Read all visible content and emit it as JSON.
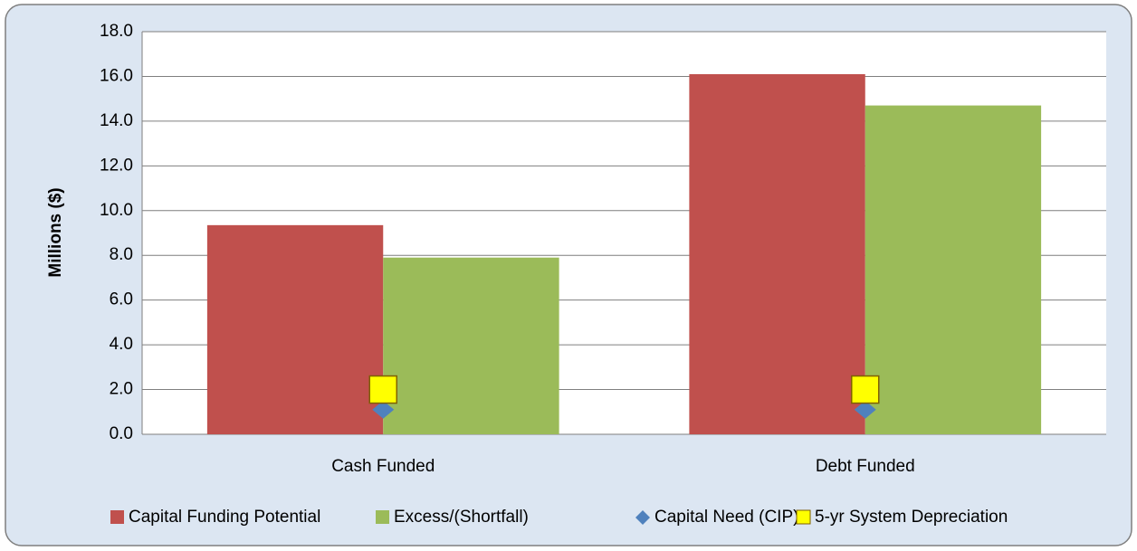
{
  "chart_data": {
    "type": "bar",
    "y_label": "Millions ($)",
    "categories": [
      "Cash Funded",
      "Debt Funded"
    ],
    "series": [
      {
        "name": "Capital Funding Potential",
        "color": "#c0504d",
        "values": [
          9.35,
          16.1
        ]
      },
      {
        "name": "Excess/(Shortfall)",
        "color": "#9bbb59",
        "values": [
          7.9,
          14.7
        ]
      },
      {
        "name": "Capital Need (CIP)",
        "color": "#4f81bd",
        "marker": "diamond",
        "values": [
          1.1,
          1.1
        ]
      },
      {
        "name": "5-yr System Depreciation",
        "color": "#ffff00",
        "marker": "square",
        "values": [
          2.0,
          2.0
        ]
      }
    ],
    "ylim": [
      0,
      18
    ],
    "yticks": [
      {
        "value": 0,
        "label": "0.0"
      },
      {
        "value": 2,
        "label": "2.0"
      },
      {
        "value": 4,
        "label": "4.0"
      },
      {
        "value": 6,
        "label": "6.0"
      },
      {
        "value": 8,
        "label": "8.0"
      },
      {
        "value": 10,
        "label": "10.0"
      },
      {
        "value": 12,
        "label": "12.0"
      },
      {
        "value": 14,
        "label": "14.0"
      },
      {
        "value": 16,
        "label": "16.0"
      },
      {
        "value": 18,
        "label": "18.0"
      }
    ],
    "grid": true,
    "legend": "bottom"
  }
}
